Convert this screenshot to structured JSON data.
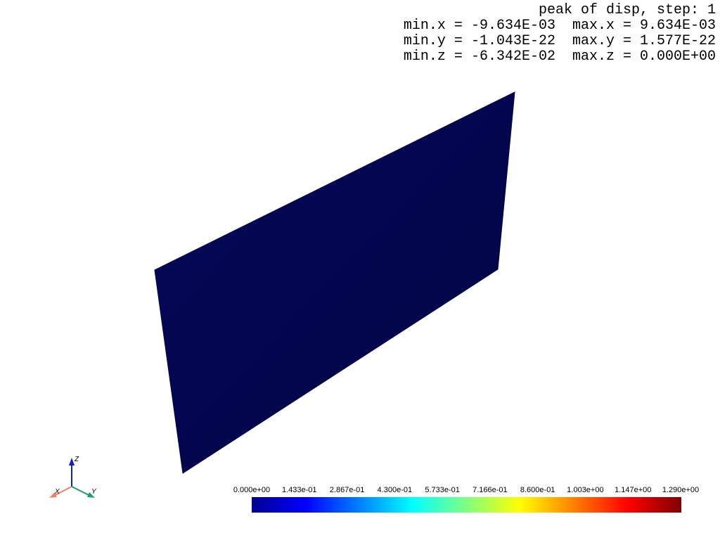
{
  "info": {
    "title": "peak of disp, step: 1",
    "x_range": "min.x = -9.634E-03  max.x = 9.634E-03",
    "y_range": "min.y = -1.043E-22  max.y = 1.577E-22",
    "z_range": "min.z = -6.342E-02  max.z = 0.000E+00"
  },
  "mesh": {
    "color": "#03064f"
  },
  "axes": {
    "x_label": "X",
    "y_label": "Y",
    "z_label": "Z",
    "x_color": "#f08060",
    "y_color": "#1aa060",
    "z_color": "#1020c0"
  },
  "colorbar": {
    "colormap": "jet",
    "min": 0.0,
    "max": 1.29,
    "labels": [
      "0.000e+00",
      "1.433e-01",
      "2.867e-01",
      "4.300e-01",
      "5.733e-01",
      "7.166e-01",
      "8.600e-01",
      "1.003e+00",
      "1.147e+00",
      "1.290e+00"
    ]
  }
}
